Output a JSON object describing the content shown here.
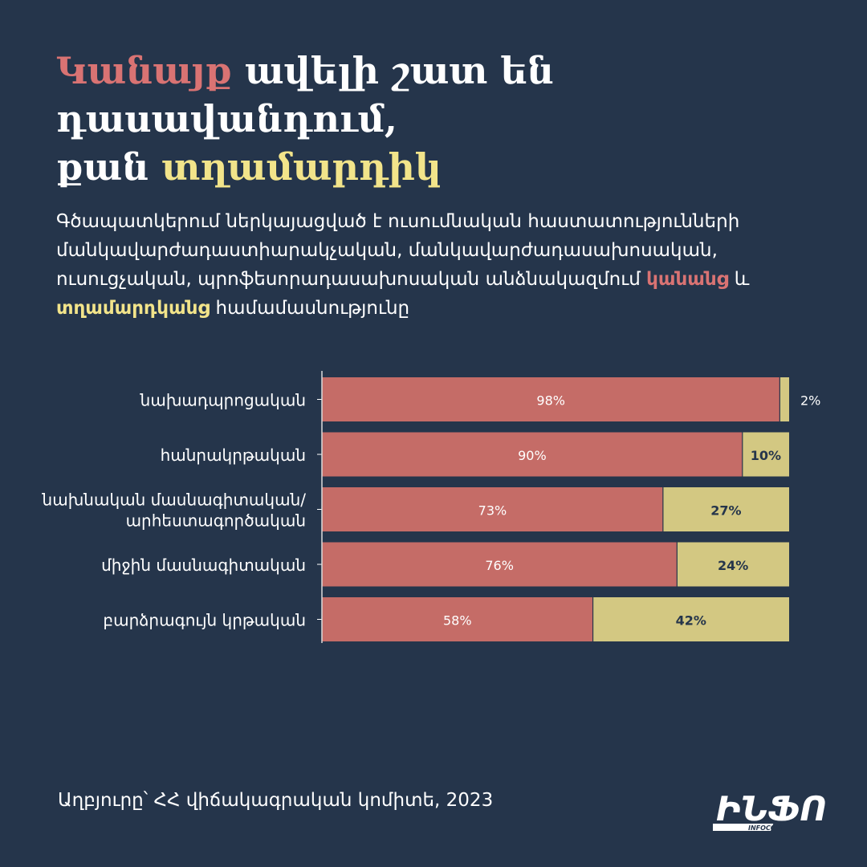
{
  "header": {
    "title_part1": "Կանայք",
    "title_part2": " ավելի շատ են դասավանդում,",
    "title_part3": "քան ",
    "title_part4": "տղամարդիկ"
  },
  "description": {
    "text": "Գծապատկերում ներկայացված է ուսումնական հաստատությունների մանկավարժադաստիարակչական, մանկավարժադասախոսական, ուսուցչական, պրոֆեսորադասախոսական անձնակազմում ",
    "women": "կանանց",
    "and": " և ",
    "men": "տղամարդկանց",
    "tail": " համամասնությունը"
  },
  "colors": {
    "background": "#25354b",
    "women": "#c56c67",
    "men": "#d3c882",
    "title_red": "#d97373",
    "title_yellow": "#f2e48a"
  },
  "chart_data": {
    "type": "bar",
    "orientation": "horizontal",
    "stacked": true,
    "percent": true,
    "categories": [
      [
        "նախադպրոցական"
      ],
      [
        "հանրակրթական"
      ],
      [
        "նախնական մասնագիտական/",
        "արհեստագործական"
      ],
      [
        "միջին մասնագիտական"
      ],
      [
        "բարձրագույն կրթական"
      ]
    ],
    "series": [
      {
        "name": "կանանց",
        "values": [
          98,
          90,
          73,
          76,
          58
        ],
        "labels": [
          "98%",
          "90%",
          "73%",
          "76%",
          "58%"
        ]
      },
      {
        "name": "տղամարդկանց",
        "values": [
          2,
          10,
          27,
          24,
          42
        ],
        "labels": [
          "2%",
          "10%",
          "27%",
          "24%",
          "42%"
        ]
      }
    ],
    "xlim": [
      0,
      100
    ],
    "grid": false
  },
  "footer": {
    "source": "Աղբյուրը՝ ՀՀ վիճակագրական կոմիտե, 2023"
  },
  "logo": {
    "mark": "ԻՆՖՈ",
    "sub": "INFOCOM"
  }
}
